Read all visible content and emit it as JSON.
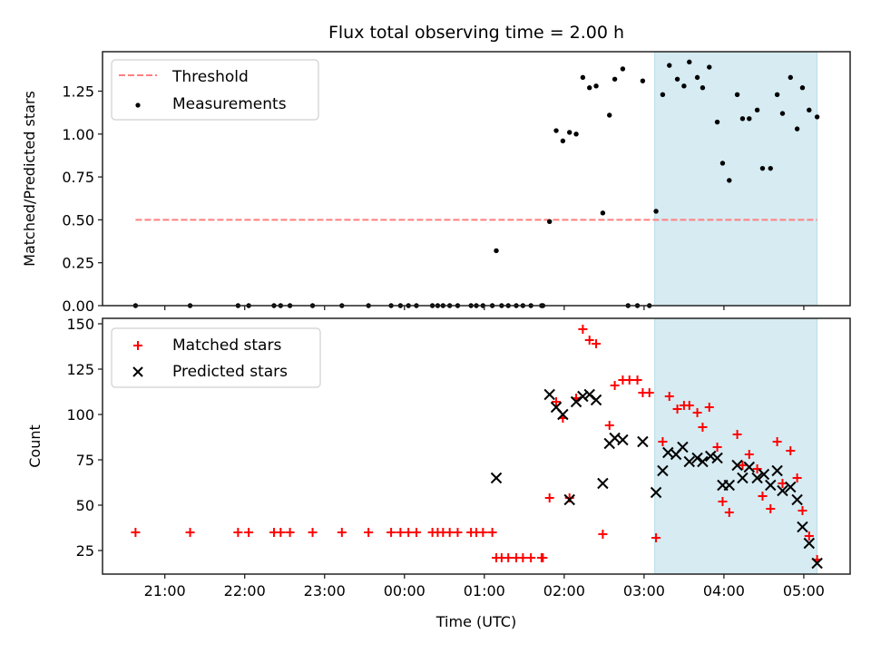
{
  "figure": {
    "title": "Flux total observing time = 2.00 h",
    "xlabel": "Time (UTC)"
  },
  "chart_data": [
    {
      "type": "scatter",
      "panel": "top",
      "title": "Flux total observing time = 2.00 h",
      "xlabel": "",
      "ylabel": "Matched/Predicted stars",
      "x_unit": "hours since 21:00 UTC",
      "xlim": [
        -0.78,
        8.58
      ],
      "ylim": [
        0,
        1.48
      ],
      "yticks": [
        0.0,
        0.25,
        0.5,
        0.75,
        1.0,
        1.25
      ],
      "ytick_labels": [
        "0.00",
        "0.25",
        "0.50",
        "0.75",
        "1.00",
        "1.25"
      ],
      "xticks": [
        0,
        1,
        2,
        3,
        4,
        5,
        6,
        7,
        8
      ],
      "xtick_labels": [],
      "grid": false,
      "legend": {
        "placement": "top-left",
        "entries": [
          "Threshold",
          "Measurements"
        ]
      },
      "shaded_region": {
        "x": [
          "03:08",
          "05:10"
        ],
        "color": "#add8e6"
      },
      "threshold": {
        "name": "Threshold",
        "value": 0.5,
        "x": [
          "20:38",
          "05:10"
        ],
        "color": "#ff7f7f",
        "style": "dashed"
      },
      "series": [
        {
          "name": "Measurements",
          "color": "#000000",
          "marker": "dot",
          "points": [
            [
              "20:38",
              0.0
            ],
            [
              "21:19",
              0.0
            ],
            [
              "21:55",
              0.0
            ],
            [
              "22:03",
              0.0
            ],
            [
              "22:22",
              0.0
            ],
            [
              "22:27",
              0.0
            ],
            [
              "22:34",
              0.0
            ],
            [
              "22:51",
              0.0
            ],
            [
              "23:13",
              0.0
            ],
            [
              "23:33",
              0.0
            ],
            [
              "23:50",
              0.0
            ],
            [
              "23:57",
              0.0
            ],
            [
              "00:03",
              0.0
            ],
            [
              "00:09",
              0.0
            ],
            [
              "00:21",
              0.0
            ],
            [
              "00:25",
              0.0
            ],
            [
              "00:29",
              0.0
            ],
            [
              "00:34",
              0.0
            ],
            [
              "00:40",
              0.0
            ],
            [
              "00:50",
              0.0
            ],
            [
              "00:54",
              0.0
            ],
            [
              "00:59",
              0.0
            ],
            [
              "01:06",
              0.0
            ],
            [
              "01:09",
              0.32
            ],
            [
              "01:13",
              0.0
            ],
            [
              "01:18",
              0.0
            ],
            [
              "01:24",
              0.0
            ],
            [
              "01:29",
              0.0
            ],
            [
              "01:35",
              0.0
            ],
            [
              "01:43",
              0.0
            ],
            [
              "01:44",
              0.0
            ],
            [
              "01:49",
              0.49
            ],
            [
              "01:54",
              1.02
            ],
            [
              "01:59",
              0.96
            ],
            [
              "02:04",
              1.01
            ],
            [
              "02:09",
              1.0
            ],
            [
              "02:14",
              1.33
            ],
            [
              "02:19",
              1.27
            ],
            [
              "02:24",
              1.28
            ],
            [
              "02:29",
              0.54
            ],
            [
              "02:34",
              1.11
            ],
            [
              "02:38",
              1.32
            ],
            [
              "02:44",
              1.38
            ],
            [
              "02:48",
              0.0
            ],
            [
              "02:55",
              0.0
            ],
            [
              "02:59",
              1.31
            ],
            [
              "03:04",
              0.0
            ],
            [
              "03:09",
              0.55
            ],
            [
              "03:14",
              1.23
            ],
            [
              "03:19",
              1.4
            ],
            [
              "03:25",
              1.32
            ],
            [
              "03:30",
              1.28
            ],
            [
              "03:34",
              1.42
            ],
            [
              "03:40",
              1.33
            ],
            [
              "03:44",
              1.27
            ],
            [
              "03:49",
              1.39
            ],
            [
              "03:55",
              1.07
            ],
            [
              "03:59",
              0.83
            ],
            [
              "04:04",
              0.73
            ],
            [
              "04:10",
              1.23
            ],
            [
              "04:14",
              1.09
            ],
            [
              "04:19",
              1.09
            ],
            [
              "04:25",
              1.14
            ],
            [
              "04:29",
              0.8
            ],
            [
              "04:35",
              0.8
            ],
            [
              "04:40",
              1.23
            ],
            [
              "04:44",
              1.12
            ],
            [
              "04:50",
              1.33
            ],
            [
              "04:55",
              1.03
            ],
            [
              "04:59",
              1.27
            ],
            [
              "05:04",
              1.14
            ],
            [
              "05:10",
              1.1
            ]
          ]
        }
      ]
    },
    {
      "type": "scatter",
      "panel": "bottom",
      "title": "",
      "xlabel": "Time (UTC)",
      "ylabel": "Count",
      "x_unit": "hours since 21:00 UTC",
      "xlim": [
        -0.78,
        8.58
      ],
      "ylim": [
        12,
        153
      ],
      "yticks": [
        25,
        50,
        75,
        100,
        125,
        150
      ],
      "ytick_labels": [
        "25",
        "50",
        "75",
        "100",
        "125",
        "150"
      ],
      "xticks": [
        0,
        1,
        2,
        3,
        4,
        5,
        6,
        7,
        8
      ],
      "xtick_labels": [
        "21:00",
        "22:00",
        "23:00",
        "00:00",
        "01:00",
        "02:00",
        "03:00",
        "04:00",
        "05:00"
      ],
      "grid": false,
      "legend": {
        "placement": "top-left",
        "entries": [
          "Matched stars",
          "Predicted stars"
        ]
      },
      "shaded_region": {
        "x": [
          "03:08",
          "05:10"
        ],
        "color": "#add8e6"
      },
      "series": [
        {
          "name": "Matched stars",
          "color": "#ff0000",
          "marker": "plus",
          "points": [
            [
              "20:38",
              35
            ],
            [
              "21:19",
              35
            ],
            [
              "21:55",
              35
            ],
            [
              "22:03",
              35
            ],
            [
              "22:22",
              35
            ],
            [
              "22:27",
              35
            ],
            [
              "22:34",
              35
            ],
            [
              "22:51",
              35
            ],
            [
              "23:13",
              35
            ],
            [
              "23:33",
              35
            ],
            [
              "23:50",
              35
            ],
            [
              "23:57",
              35
            ],
            [
              "00:03",
              35
            ],
            [
              "00:09",
              35
            ],
            [
              "00:21",
              35
            ],
            [
              "00:25",
              35
            ],
            [
              "00:29",
              35
            ],
            [
              "00:34",
              35
            ],
            [
              "00:40",
              35
            ],
            [
              "00:50",
              35
            ],
            [
              "00:54",
              35
            ],
            [
              "00:59",
              35
            ],
            [
              "01:06",
              35
            ],
            [
              "01:09",
              21
            ],
            [
              "01:13",
              21
            ],
            [
              "01:18",
              21
            ],
            [
              "01:24",
              21
            ],
            [
              "01:29",
              21
            ],
            [
              "01:35",
              21
            ],
            [
              "01:43",
              21
            ],
            [
              "01:44",
              21
            ],
            [
              "01:49",
              54
            ],
            [
              "01:54",
              107
            ],
            [
              "01:59",
              98
            ],
            [
              "02:04",
              54
            ],
            [
              "02:09",
              109
            ],
            [
              "02:14",
              147
            ],
            [
              "02:19",
              141
            ],
            [
              "02:24",
              139
            ],
            [
              "02:29",
              34
            ],
            [
              "02:34",
              94
            ],
            [
              "02:38",
              116
            ],
            [
              "02:44",
              119
            ],
            [
              "02:49",
              119
            ],
            [
              "02:55",
              119
            ],
            [
              "02:59",
              112
            ],
            [
              "03:04",
              112
            ],
            [
              "03:09",
              32
            ],
            [
              "03:14",
              85
            ],
            [
              "03:19",
              110
            ],
            [
              "03:25",
              103
            ],
            [
              "03:30",
              105
            ],
            [
              "03:34",
              105
            ],
            [
              "03:40",
              101
            ],
            [
              "03:44",
              93
            ],
            [
              "03:49",
              104
            ],
            [
              "03:55",
              82
            ],
            [
              "03:59",
              52
            ],
            [
              "04:04",
              46
            ],
            [
              "04:10",
              89
            ],
            [
              "04:14",
              72
            ],
            [
              "04:19",
              78
            ],
            [
              "04:25",
              70
            ],
            [
              "04:29",
              55
            ],
            [
              "04:35",
              48
            ],
            [
              "04:40",
              85
            ],
            [
              "04:44",
              62
            ],
            [
              "04:50",
              80
            ],
            [
              "04:55",
              65
            ],
            [
              "04:59",
              47
            ],
            [
              "05:04",
              33
            ],
            [
              "05:10",
              20
            ]
          ]
        },
        {
          "name": "Predicted stars",
          "color": "#000000",
          "marker": "x",
          "points": [
            [
              "01:09",
              65
            ],
            [
              "01:49",
              111
            ],
            [
              "01:54",
              104
            ],
            [
              "01:59",
              100
            ],
            [
              "02:04",
              53
            ],
            [
              "02:09",
              107
            ],
            [
              "02:14",
              110
            ],
            [
              "02:19",
              111
            ],
            [
              "02:24",
              108
            ],
            [
              "02:29",
              62
            ],
            [
              "02:34",
              84
            ],
            [
              "02:38",
              87
            ],
            [
              "02:44",
              86
            ],
            [
              "02:59",
              85
            ],
            [
              "03:09",
              57
            ],
            [
              "03:14",
              69
            ],
            [
              "03:18",
              79
            ],
            [
              "03:24",
              78
            ],
            [
              "03:29",
              82
            ],
            [
              "03:34",
              74
            ],
            [
              "03:40",
              76
            ],
            [
              "03:44",
              74
            ],
            [
              "03:50",
              77
            ],
            [
              "03:55",
              76
            ],
            [
              "03:59",
              61
            ],
            [
              "04:04",
              61
            ],
            [
              "04:10",
              72
            ],
            [
              "04:14",
              65
            ],
            [
              "04:19",
              71
            ],
            [
              "04:25",
              65
            ],
            [
              "04:30",
              67
            ],
            [
              "04:35",
              61
            ],
            [
              "04:40",
              69
            ],
            [
              "04:44",
              58
            ],
            [
              "04:50",
              60
            ],
            [
              "04:55",
              53
            ],
            [
              "04:59",
              38
            ],
            [
              "05:04",
              29
            ],
            [
              "05:10",
              18
            ]
          ]
        }
      ]
    }
  ]
}
